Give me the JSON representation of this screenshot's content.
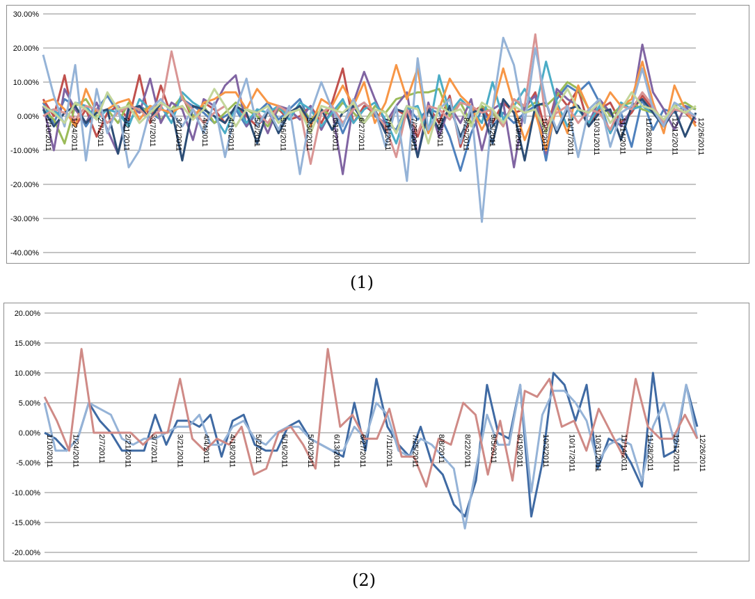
{
  "captions": [
    "(1)",
    "(2)"
  ],
  "chart_data": [
    {
      "type": "line",
      "title": "",
      "xlabel": "",
      "ylabel": "",
      "ylim": [
        -0.4,
        0.3
      ],
      "y_ticks": [
        "30.00%",
        "20.00%",
        "10.00%",
        "0.00%",
        "-10.00%",
        "-20.00%",
        "-30.00%",
        "-40.00%"
      ],
      "y_tick_values": [
        0.3,
        0.2,
        0.1,
        0.0,
        -0.1,
        -0.2,
        -0.3,
        -0.4
      ],
      "x_tick_labels": [
        "1/10/2011",
        "1/24/2011",
        "2/7/2011",
        "2/21/2011",
        "3/7/2011",
        "3/21/2011",
        "4/4/2011",
        "4/18/2011",
        "5/2/2011",
        "5/16/2011",
        "5/30/2011",
        "6/13/2011",
        "6/27/2011",
        "7/11/2011",
        "7/25/2011",
        "8/8/2011",
        "8/22/2011",
        "9/5/2011",
        "9/19/2011",
        "10/3/2011",
        "10/17/2011",
        "10/31/2011",
        "11/14/2011",
        "11/28/2011",
        "12/12/2011",
        "12/26/2011"
      ],
      "grid": true,
      "legend": "none",
      "series": [
        {
          "color": "#4f81bd",
          "values": [
            0.04,
            -0.02,
            0.05,
            0.03,
            -0.03,
            0.02,
            0.06,
            0.01,
            -0.02,
            0.03,
            0.01,
            -0.01,
            0.02,
            0.05,
            0.03,
            0.01,
            -0.02,
            0.0,
            0.02,
            -0.03,
            0.01,
            0.04,
            -0.01,
            0.02,
            0.05,
            -0.02,
            0.01,
            0.03,
            -0.05,
            0.02,
            0.04,
            0.0,
            -0.02,
            -0.04,
            0.03,
            -0.01,
            0.02,
            0.01,
            -0.06,
            -0.16,
            -0.05,
            0.02,
            -0.03,
            0.01,
            -0.02,
            0.01,
            0.03,
            -0.13,
            0.05,
            0.09,
            0.07,
            0.1,
            0.04,
            -0.05,
            0.01,
            -0.09,
            0.05,
            -0.04,
            0.02,
            0.01,
            0.03,
            0.02
          ]
        },
        {
          "color": "#c0504d",
          "values": [
            0.05,
            0.0,
            0.12,
            -0.03,
            0.02,
            -0.06,
            0.01,
            0.03,
            -0.01,
            0.12,
            -0.02,
            0.09,
            0.0,
            0.06,
            -0.01,
            0.04,
            0.02,
            -0.02,
            0.03,
            0.0,
            -0.03,
            0.01,
            0.02,
            -0.01,
            0.0,
            0.03,
            -0.02,
            0.04,
            0.14,
            -0.02,
            0.03,
            0.01,
            -0.04,
            0.02,
            0.0,
            -0.06,
            0.03,
            -0.02,
            0.06,
            -0.09,
            0.01,
            0.03,
            -0.02,
            0.04,
            0.01,
            0.02,
            0.07,
            -0.05,
            0.07,
            0.03,
            0.08,
            -0.03,
            0.02,
            0.04,
            -0.02,
            0.01,
            0.06,
            0.02,
            -0.03,
            0.03,
            0.01,
            -0.02
          ]
        },
        {
          "color": "#9bbb59",
          "values": [
            0.02,
            -0.01,
            -0.08,
            0.03,
            0.05,
            0.0,
            0.02,
            -0.02,
            0.04,
            0.01,
            0.03,
            -0.01,
            0.02,
            0.06,
            0.0,
            0.03,
            -0.02,
            0.01,
            0.04,
            0.02,
            0.0,
            -0.03,
            0.02,
            0.01,
            0.03,
            -0.01,
            0.02,
            0.0,
            0.04,
            0.01,
            -0.02,
            0.03,
            0.01,
            0.05,
            0.06,
            0.07,
            0.07,
            0.08,
            0.0,
            0.04,
            -0.02,
            0.03,
            0.01,
            -0.03,
            0.05,
            0.02,
            0.04,
            0.03,
            0.06,
            0.1,
            0.08,
            0.02,
            0.05,
            0.0,
            0.03,
            0.04,
            0.02,
            0.01,
            -0.02,
            0.03,
            0.04,
            0.02
          ]
        },
        {
          "color": "#8064a2",
          "values": [
            0.03,
            -0.1,
            0.08,
            0.02,
            -0.02,
            0.04,
            -0.04,
            -0.11,
            0.03,
            0.01,
            0.11,
            -0.02,
            0.04,
            0.02,
            -0.07,
            0.05,
            0.03,
            0.09,
            0.12,
            -0.03,
            0.02,
            -0.05,
            0.03,
            0.02,
            -0.01,
            0.03,
            -0.04,
            0.02,
            -0.17,
            0.04,
            0.13,
            0.05,
            -0.02,
            0.03,
            0.07,
            -0.12,
            0.04,
            -0.06,
            0.03,
            -0.02,
            0.05,
            -0.1,
            0.02,
            0.04,
            -0.15,
            0.03,
            0.06,
            -0.11,
            0.08,
            0.05,
            0.03,
            -0.02,
            0.05,
            0.01,
            -0.03,
            0.02,
            0.21,
            0.07,
            0.02,
            -0.04,
            0.03,
            -0.01
          ]
        },
        {
          "color": "#4bacc6",
          "values": [
            0.01,
            0.02,
            -0.02,
            0.04,
            0.03,
            -0.01,
            0.02,
            0.01,
            -0.03,
            0.05,
            0.02,
            0.03,
            -0.02,
            0.07,
            0.04,
            0.02,
            0.0,
            -0.05,
            0.03,
            -0.02,
            0.02,
            0.01,
            0.03,
            -0.01,
            0.04,
            0.02,
            -0.03,
            0.01,
            0.05,
            -0.02,
            0.02,
            0.04,
            -0.01,
            -0.08,
            0.02,
            0.03,
            -0.05,
            0.12,
            0.01,
            0.05,
            0.02,
            -0.02,
            0.1,
            -0.01,
            0.03,
            0.08,
            0.02,
            0.16,
            0.04,
            -0.03,
            0.02,
            -0.02,
            0.03,
            -0.05,
            0.04,
            0.02,
            0.03,
            0.01,
            -0.03,
            0.02,
            0.01,
            0.0
          ]
        },
        {
          "color": "#f79646",
          "values": [
            0.04,
            0.05,
            0.02,
            -0.03,
            0.08,
            0.01,
            0.02,
            0.04,
            0.05,
            -0.01,
            0.03,
            0.02,
            0.01,
            0.03,
            -0.01,
            0.04,
            0.05,
            0.07,
            0.07,
            0.02,
            0.08,
            0.04,
            0.03,
            0.01,
            0.02,
            -0.03,
            0.05,
            0.03,
            0.09,
            0.03,
            0.1,
            -0.02,
            0.04,
            0.15,
            0.05,
            0.14,
            -0.05,
            0.02,
            0.11,
            0.06,
            0.03,
            -0.04,
            0.02,
            0.14,
            0.03,
            -0.07,
            0.01,
            -0.1,
            0.03,
            -0.05,
            0.09,
            0.02,
            0.01,
            0.07,
            0.03,
            0.05,
            0.16,
            0.04,
            -0.05,
            0.09,
            0.02,
            -0.03
          ]
        },
        {
          "color": "#2c4d75",
          "values": [
            0.02,
            -0.03,
            0.01,
            0.03,
            -0.02,
            0.01,
            0.02,
            -0.11,
            0.02,
            0.03,
            -0.01,
            0.04,
            0.02,
            -0.13,
            0.03,
            0.02,
            0.0,
            -0.02,
            0.03,
            0.01,
            -0.08,
            0.02,
            -0.05,
            0.01,
            0.03,
            -0.02,
            0.02,
            -0.04,
            0.01,
            0.03,
            -0.02,
            0.02,
            -0.05,
            0.02,
            0.01,
            -0.12,
            0.02,
            -0.04,
            0.03,
            -0.06,
            0.01,
            0.02,
            -0.08,
            0.05,
            0.01,
            -0.13,
            0.03,
            0.04,
            -0.05,
            0.02,
            0.03,
            -0.03,
            0.01,
            0.02,
            -0.07,
            0.03,
            0.05,
            0.01,
            -0.03,
            0.02,
            -0.06,
            0.01
          ]
        },
        {
          "color": "#d99594",
          "values": [
            0.0,
            0.02,
            0.01,
            -0.01,
            0.03,
            0.02,
            -0.02,
            0.01,
            0.03,
            0.02,
            -0.01,
            0.02,
            0.19,
            0.05,
            0.02,
            -0.02,
            0.01,
            0.03,
            -0.03,
            0.02,
            0.01,
            -0.02,
            0.03,
            0.01,
            0.02,
            -0.14,
            0.01,
            0.03,
            -0.02,
            0.02,
            0.04,
            0.01,
            -0.03,
            -0.12,
            0.02,
            -0.05,
            0.03,
            0.02,
            -0.01,
            0.04,
            0.03,
            0.01,
            0.02,
            -0.03,
            0.05,
            0.03,
            0.24,
            -0.02,
            0.01,
            0.03,
            -0.02,
            0.02,
            0.01,
            -0.04,
            0.03,
            0.02,
            0.07,
            0.03,
            -0.02,
            0.02,
            0.01,
            0.0
          ]
        },
        {
          "color": "#95b3d7",
          "values": [
            0.18,
            0.06,
            -0.03,
            0.15,
            -0.13,
            0.08,
            -0.05,
            0.03,
            -0.15,
            -0.1,
            0.02,
            0.05,
            0.01,
            -0.03,
            0.02,
            -0.05,
            0.04,
            -0.12,
            0.02,
            0.11,
            -0.03,
            0.02,
            -0.04,
            0.03,
            -0.17,
            0.01,
            0.1,
            0.02,
            -0.03,
            0.05,
            -0.02,
            0.02,
            -0.09,
            0.03,
            -0.19,
            0.17,
            -0.04,
            0.02,
            0.05,
            -0.08,
            0.03,
            -0.31,
            0.02,
            0.23,
            0.15,
            -0.02,
            0.2,
            0.04,
            -0.04,
            0.03,
            -0.12,
            0.02,
            0.05,
            -0.09,
            0.01,
            0.03,
            0.14,
            0.02,
            -0.03,
            0.04,
            0.02,
            0.0
          ]
        },
        {
          "color": "#c3d69b",
          "values": [
            0.03,
            0.01,
            -0.02,
            0.04,
            0.02,
            -0.01,
            0.07,
            0.02,
            0.03,
            -0.02,
            0.01,
            0.04,
            0.02,
            0.03,
            -0.01,
            0.02,
            0.08,
            0.03,
            -0.03,
            0.02,
            0.01,
            0.03,
            -0.02,
            0.01,
            0.02,
            -0.05,
            0.03,
            0.02,
            0.01,
            0.04,
            -0.02,
            0.02,
            0.01,
            -0.05,
            0.03,
            0.02,
            -0.08,
            0.03,
            0.01,
            0.02,
            -0.03,
            0.04,
            0.02,
            -0.02,
            0.03,
            0.01,
            0.02,
            -0.05,
            0.03,
            0.08,
            0.02,
            0.01,
            0.04,
            -0.02,
            0.02,
            0.07,
            0.03,
            0.02,
            -0.01,
            0.03,
            0.01,
            0.03
          ]
        }
      ]
    },
    {
      "type": "line",
      "title": "",
      "xlabel": "",
      "ylabel": "",
      "ylim": [
        -0.2,
        0.2
      ],
      "y_ticks": [
        "20.00%",
        "15.00%",
        "10.00%",
        "5.00%",
        "0.00%",
        "-5.00%",
        "-10.00%",
        "-15.00%",
        "-20.00%"
      ],
      "y_tick_values": [
        0.2,
        0.15,
        0.1,
        0.05,
        0.0,
        -0.05,
        -0.1,
        -0.15,
        -0.2
      ],
      "x_tick_labels": [
        "1/10/2011",
        "1/24/2011",
        "2/7/2011",
        "2/21/2011",
        "3/7/2011",
        "3/21/2011",
        "4/4/2011",
        "4/18/2011",
        "5/2/2011",
        "5/16/2011",
        "5/30/2011",
        "6/13/2011",
        "6/27/2011",
        "7/11/2011",
        "7/25/2011",
        "8/8/2011",
        "8/22/2011",
        "9/5/2011",
        "9/19/2011",
        "10/3/2011",
        "10/17/2011",
        "10/31/2011",
        "11/14/2011",
        "11/28/2011",
        "12/12/2011",
        "12/26/2011"
      ],
      "grid": true,
      "legend": "none",
      "series": [
        {
          "color": "#3f6aa3",
          "values": [
            0.0,
            -0.01,
            -0.03,
            -0.01,
            0.05,
            0.02,
            0.0,
            -0.03,
            -0.03,
            -0.03,
            0.03,
            -0.02,
            0.02,
            0.02,
            0.01,
            0.03,
            -0.04,
            0.02,
            0.03,
            -0.02,
            -0.03,
            -0.03,
            0.01,
            0.02,
            -0.01,
            -0.02,
            -0.03,
            -0.04,
            0.05,
            -0.03,
            0.09,
            0.01,
            -0.02,
            -0.04,
            0.01,
            -0.05,
            -0.07,
            -0.12,
            -0.14,
            -0.08,
            0.08,
            0.0,
            -0.01,
            0.08,
            -0.14,
            -0.05,
            0.1,
            0.08,
            0.02,
            0.08,
            -0.06,
            -0.01,
            -0.02,
            -0.05,
            -0.09,
            0.1,
            -0.04,
            -0.03,
            0.08,
            0.01
          ]
        },
        {
          "color": "#95b3d7",
          "values": [
            0.05,
            -0.03,
            -0.03,
            -0.01,
            0.05,
            0.04,
            0.03,
            -0.01,
            -0.02,
            -0.01,
            -0.01,
            0.0,
            0.01,
            0.01,
            0.03,
            -0.02,
            -0.02,
            0.01,
            0.02,
            -0.01,
            -0.02,
            0.0,
            0.01,
            0.01,
            -0.01,
            -0.02,
            -0.03,
            -0.03,
            0.01,
            -0.01,
            0.05,
            0.03,
            -0.03,
            -0.04,
            -0.01,
            -0.02,
            -0.04,
            -0.06,
            -0.16,
            -0.06,
            0.03,
            -0.02,
            -0.02,
            0.08,
            -0.1,
            0.03,
            0.07,
            0.07,
            0.05,
            0.02,
            -0.05,
            -0.02,
            -0.01,
            -0.02,
            -0.08,
            0.01,
            0.05,
            -0.02,
            0.08,
            -0.01
          ]
        },
        {
          "color": "#cf8a86",
          "values": [
            0.06,
            0.02,
            -0.03,
            0.14,
            0.0,
            0.0,
            0.0,
            0.0,
            -0.02,
            0.0,
            0.0,
            0.09,
            -0.01,
            -0.03,
            -0.01,
            -0.02,
            0.01,
            -0.07,
            -0.06,
            0.0,
            0.01,
            -0.02,
            -0.06,
            0.14,
            0.01,
            0.03,
            -0.01,
            -0.01,
            0.04,
            -0.04,
            -0.04,
            -0.09,
            -0.01,
            -0.02,
            0.05,
            0.03,
            -0.07,
            0.02,
            -0.08,
            0.07,
            0.06,
            0.09,
            0.01,
            0.02,
            -0.03,
            0.04,
            0.0,
            -0.04,
            0.09,
            0.01,
            -0.01,
            -0.01,
            0.03,
            -0.01
          ]
        }
      ]
    }
  ]
}
